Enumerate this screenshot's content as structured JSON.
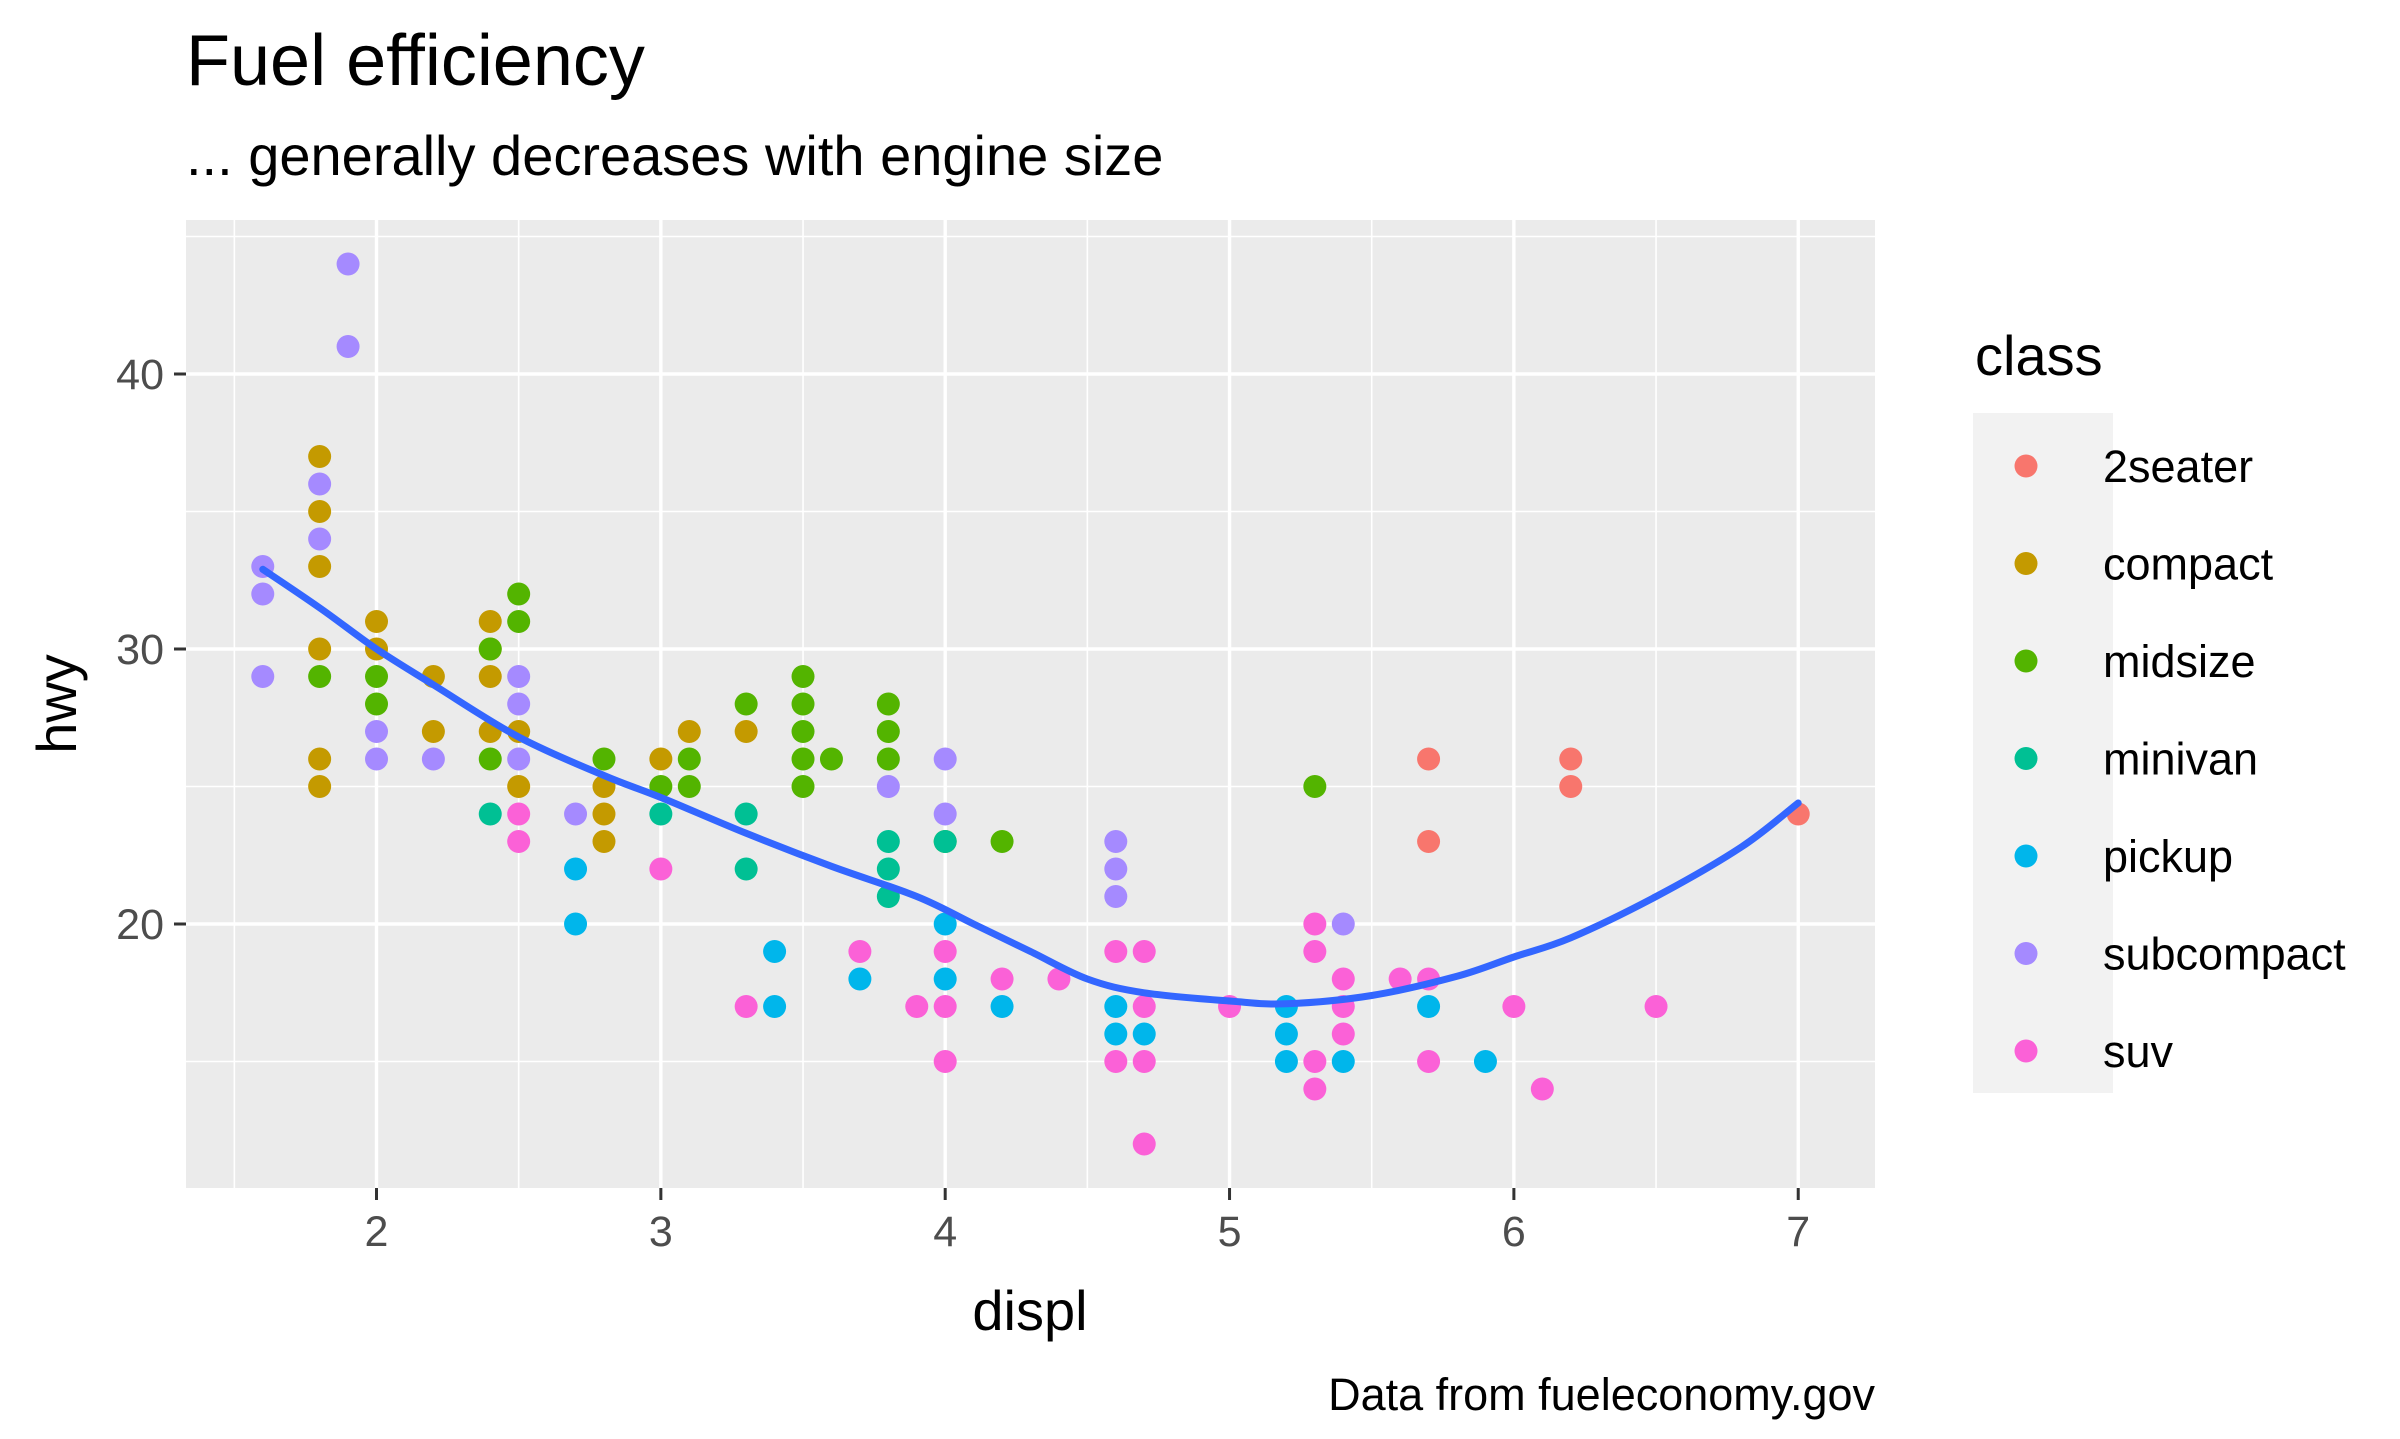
{
  "chart_data": {
    "type": "scatter",
    "title": "Fuel efficiency",
    "subtitle": "... generally decreases with engine size",
    "caption": "Data from fueleconomy.gov",
    "xlabel": "displ",
    "ylabel": "hwy",
    "xlim": [
      1.33,
      7.27
    ],
    "ylim": [
      10.4,
      45.6
    ],
    "xticks": [
      2,
      3,
      4,
      5,
      6,
      7
    ],
    "yticks": [
      20,
      30,
      40
    ],
    "grid": true,
    "legend": {
      "title": "class",
      "position": "right"
    },
    "series": [
      {
        "name": "2seater",
        "color": "#F8766D",
        "points": [
          [
            5.7,
            26
          ],
          [
            5.7,
            23
          ],
          [
            6.2,
            26
          ],
          [
            6.2,
            25
          ],
          [
            7.0,
            24
          ]
        ]
      },
      {
        "name": "compact",
        "color": "#C49A00",
        "points": [
          [
            1.8,
            37
          ],
          [
            1.8,
            35
          ],
          [
            1.8,
            33
          ],
          [
            1.8,
            30
          ],
          [
            1.8,
            26
          ],
          [
            1.8,
            25
          ],
          [
            2.0,
            31
          ],
          [
            2.0,
            30
          ],
          [
            2.2,
            29
          ],
          [
            2.2,
            27
          ],
          [
            2.4,
            31
          ],
          [
            2.4,
            30
          ],
          [
            2.4,
            29
          ],
          [
            2.4,
            27
          ],
          [
            2.5,
            27
          ],
          [
            2.5,
            25
          ],
          [
            2.8,
            25
          ],
          [
            2.8,
            24
          ],
          [
            2.8,
            23
          ],
          [
            3.0,
            26
          ],
          [
            3.1,
            27
          ],
          [
            3.3,
            27
          ]
        ]
      },
      {
        "name": "midsize",
        "color": "#53B400",
        "points": [
          [
            1.8,
            29
          ],
          [
            2.0,
            29
          ],
          [
            2.0,
            28
          ],
          [
            2.4,
            30
          ],
          [
            2.4,
            26
          ],
          [
            2.5,
            32
          ],
          [
            2.5,
            31
          ],
          [
            2.8,
            26
          ],
          [
            3.0,
            25
          ],
          [
            3.1,
            26
          ],
          [
            3.1,
            25
          ],
          [
            3.3,
            28
          ],
          [
            3.5,
            29
          ],
          [
            3.5,
            28
          ],
          [
            3.5,
            27
          ],
          [
            3.5,
            26
          ],
          [
            3.5,
            25
          ],
          [
            3.6,
            26
          ],
          [
            3.8,
            28
          ],
          [
            3.8,
            27
          ],
          [
            3.8,
            26
          ],
          [
            4.0,
            23
          ],
          [
            4.2,
            23
          ],
          [
            5.3,
            25
          ]
        ]
      },
      {
        "name": "minivan",
        "color": "#00C094",
        "points": [
          [
            2.4,
            24
          ],
          [
            3.0,
            24
          ],
          [
            3.3,
            24
          ],
          [
            3.3,
            22
          ],
          [
            3.8,
            23
          ],
          [
            3.8,
            22
          ],
          [
            3.8,
            21
          ],
          [
            4.0,
            23
          ]
        ]
      },
      {
        "name": "pickup",
        "color": "#00B6EB",
        "points": [
          [
            2.7,
            22
          ],
          [
            2.7,
            20
          ],
          [
            3.4,
            19
          ],
          [
            3.4,
            17
          ],
          [
            3.7,
            18
          ],
          [
            4.0,
            20
          ],
          [
            4.0,
            18
          ],
          [
            4.2,
            17
          ],
          [
            4.6,
            17
          ],
          [
            4.6,
            16
          ],
          [
            4.7,
            16
          ],
          [
            5.2,
            17
          ],
          [
            5.2,
            16
          ],
          [
            5.2,
            15
          ],
          [
            5.4,
            15
          ],
          [
            5.7,
            17
          ],
          [
            5.9,
            15
          ]
        ]
      },
      {
        "name": "subcompact",
        "color": "#A58AFF",
        "points": [
          [
            1.6,
            33
          ],
          [
            1.6,
            32
          ],
          [
            1.6,
            29
          ],
          [
            1.8,
            36
          ],
          [
            1.8,
            34
          ],
          [
            1.9,
            44
          ],
          [
            1.9,
            41
          ],
          [
            2.0,
            27
          ],
          [
            2.0,
            26
          ],
          [
            2.2,
            26
          ],
          [
            2.5,
            29
          ],
          [
            2.5,
            28
          ],
          [
            2.5,
            26
          ],
          [
            2.7,
            24
          ],
          [
            3.8,
            25
          ],
          [
            4.0,
            26
          ],
          [
            4.0,
            24
          ],
          [
            4.6,
            23
          ],
          [
            4.6,
            22
          ],
          [
            4.6,
            21
          ],
          [
            5.4,
            20
          ]
        ]
      },
      {
        "name": "suv",
        "color": "#FB61D7",
        "points": [
          [
            2.5,
            24
          ],
          [
            2.5,
            23
          ],
          [
            3.0,
            22
          ],
          [
            3.3,
            17
          ],
          [
            3.7,
            19
          ],
          [
            3.9,
            17
          ],
          [
            4.0,
            19
          ],
          [
            4.0,
            17
          ],
          [
            4.0,
            15
          ],
          [
            4.2,
            18
          ],
          [
            4.4,
            18
          ],
          [
            4.6,
            19
          ],
          [
            4.6,
            15
          ],
          [
            4.7,
            19
          ],
          [
            4.7,
            17
          ],
          [
            4.7,
            15
          ],
          [
            4.7,
            12
          ],
          [
            5.0,
            17
          ],
          [
            5.3,
            20
          ],
          [
            5.3,
            19
          ],
          [
            5.3,
            15
          ],
          [
            5.3,
            14
          ],
          [
            5.4,
            18
          ],
          [
            5.4,
            17
          ],
          [
            5.4,
            16
          ],
          [
            5.6,
            18
          ],
          [
            5.7,
            18
          ],
          [
            5.7,
            15
          ],
          [
            6.0,
            17
          ],
          [
            6.1,
            14
          ],
          [
            6.5,
            17
          ]
        ]
      }
    ],
    "smooth": {
      "color": "#3366FF",
      "points": [
        [
          1.6,
          32.9
        ],
        [
          1.8,
          31.5
        ],
        [
          2.0,
          30.0
        ],
        [
          2.2,
          28.7
        ],
        [
          2.5,
          26.8
        ],
        [
          2.8,
          25.4
        ],
        [
          3.0,
          24.6
        ],
        [
          3.3,
          23.3
        ],
        [
          3.6,
          22.1
        ],
        [
          3.9,
          21.0
        ],
        [
          4.1,
          20.0
        ],
        [
          4.3,
          19.0
        ],
        [
          4.5,
          18.0
        ],
        [
          4.7,
          17.5
        ],
        [
          5.0,
          17.2
        ],
        [
          5.2,
          17.1
        ],
        [
          5.5,
          17.4
        ],
        [
          5.8,
          18.1
        ],
        [
          6.0,
          18.8
        ],
        [
          6.2,
          19.5
        ],
        [
          6.5,
          21.0
        ],
        [
          6.8,
          22.8
        ],
        [
          7.0,
          24.4
        ]
      ]
    }
  }
}
